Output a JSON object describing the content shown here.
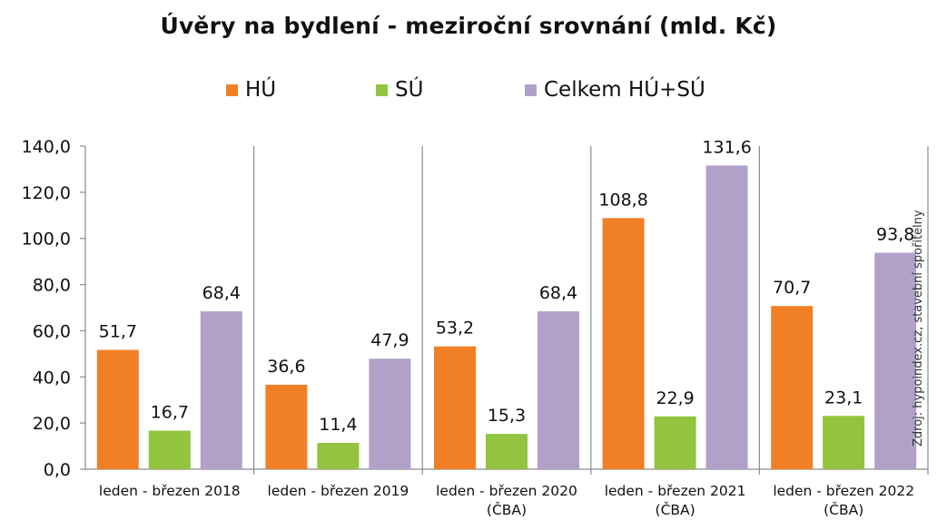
{
  "chart_data": {
    "type": "bar",
    "title": "Úvěry na bydlení - meziroční srovnání (mld. Kč)",
    "categories": [
      [
        "leden - březen 2018"
      ],
      [
        "leden - březen 2019"
      ],
      [
        "leden - březen 2020",
        "(ČBA)"
      ],
      [
        "leden - březen 2021",
        "(ČBA)"
      ],
      [
        "leden - březen 2022",
        "(ČBA)"
      ]
    ],
    "series": [
      {
        "name": "HÚ",
        "color": "#F07F26",
        "values": [
          51.7,
          36.6,
          53.2,
          108.8,
          70.7
        ],
        "labels": [
          "51,7",
          "36,6",
          "53,2",
          "108,8",
          "70,7"
        ]
      },
      {
        "name": "SÚ",
        "color": "#92C43F",
        "values": [
          16.7,
          11.4,
          15.3,
          22.9,
          23.1
        ],
        "labels": [
          "16,7",
          "11,4",
          "15,3",
          "22,9",
          "23,1"
        ]
      },
      {
        "name": "Celkem HÚ+SÚ",
        "color": "#B1A0C7",
        "values": [
          68.4,
          47.9,
          68.4,
          131.6,
          93.8
        ],
        "labels": [
          "68,4",
          "47,9",
          "68,4",
          "131,6",
          "93,8"
        ]
      }
    ],
    "ylim": [
      0,
      140
    ],
    "yticks": [
      "0,0",
      "20,0",
      "40,0",
      "60,0",
      "80,0",
      "100,0",
      "120,0",
      "140,0"
    ],
    "xlabel": "",
    "ylabel": "",
    "grid": false,
    "legend_position": "top",
    "source": "Zdroj: hypoindex.cz, stavební spořitelny"
  }
}
